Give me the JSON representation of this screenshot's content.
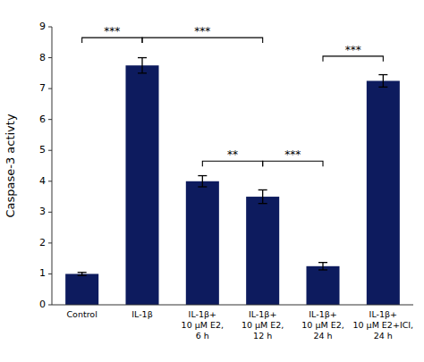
{
  "chart_data": {
    "type": "bar",
    "categories": [
      "Control",
      "IL-1β",
      "IL-1β+\n10 μM E2,\n6 h",
      "IL-1β+\n10 μM E2,\n12 h",
      "IL-1β+\n10 μM E2,\n24 h",
      "IL-1β+\n10 μM E2+ICI,\n24 h"
    ],
    "values": [
      1.0,
      7.75,
      4.0,
      3.5,
      1.25,
      7.25
    ],
    "errors": [
      0.05,
      0.25,
      0.18,
      0.22,
      0.12,
      0.2
    ],
    "color": "#0d1b5e",
    "y_label": "Caspase-3 activty",
    "ylim": [
      0,
      9
    ],
    "yticks": [
      0,
      1,
      2,
      3,
      4,
      5,
      6,
      7,
      8,
      9
    ],
    "grid": false,
    "annotations": [
      {
        "x1": 0,
        "x2": 1,
        "y": 8.65,
        "text": "***"
      },
      {
        "x1": 1,
        "x2": 3,
        "y": 8.65,
        "text": "***"
      },
      {
        "x1": 2,
        "x2": 3,
        "y": 4.65,
        "text": "**"
      },
      {
        "x1": 3,
        "x2": 4,
        "y": 4.65,
        "text": "***"
      },
      {
        "x1": 4,
        "x2": 5,
        "y": 8.05,
        "text": "***"
      }
    ]
  }
}
